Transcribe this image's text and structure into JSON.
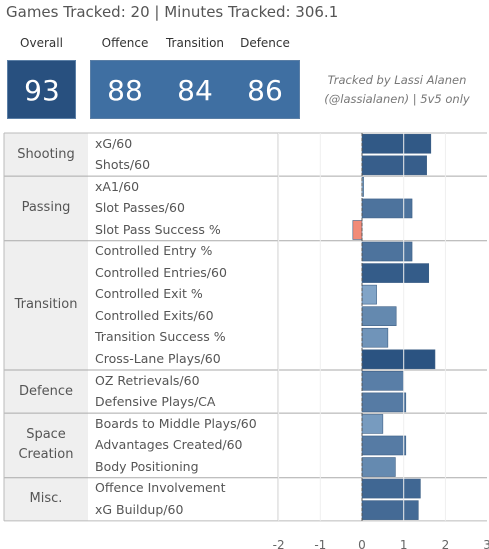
{
  "header": {
    "title": "Games Tracked: 20 | Minutes Tracked: 306.1"
  },
  "scores": {
    "overall": {
      "label": "Overall",
      "value": "93"
    },
    "offence": {
      "label": "Offence",
      "value": "88"
    },
    "transition": {
      "label": "Transition",
      "value": "84"
    },
    "defence": {
      "label": "Defence",
      "value": "86"
    }
  },
  "note": {
    "line1": "Tracked by Lassi Alanen",
    "line2": "(@lassialanen) | 5v5 only"
  },
  "colors": {
    "overall_box": "#28507f",
    "sub_box": "#3f6fa2",
    "negative_bar": "#f28b78"
  },
  "chart_data": {
    "type": "bar",
    "orientation": "horizontal",
    "xlim": [
      -2.5,
      3.2
    ],
    "xticks": [
      -2,
      -1,
      0,
      1,
      2,
      3
    ],
    "zero_line": "dashed",
    "groups": [
      {
        "name": "Shooting",
        "metrics": [
          {
            "label": "xG/60",
            "value": 1.65
          },
          {
            "label": "Shots/60",
            "value": 1.55
          }
        ]
      },
      {
        "name": "Passing",
        "metrics": [
          {
            "label": "xA1/60",
            "value": 0.04
          },
          {
            "label": "Slot Passes/60",
            "value": 1.2
          },
          {
            "label": "Slot Pass Success %",
            "value": -0.22
          }
        ]
      },
      {
        "name": "Transition",
        "metrics": [
          {
            "label": "Controlled Entry %",
            "value": 1.2
          },
          {
            "label": "Controlled Entries/60",
            "value": 1.6
          },
          {
            "label": "Controlled Exit %",
            "value": 0.35
          },
          {
            "label": "Controlled Exits/60",
            "value": 0.82
          },
          {
            "label": "Transition Success %",
            "value": 0.62
          },
          {
            "label": "Cross-Lane Plays/60",
            "value": 1.75
          }
        ]
      },
      {
        "name": "Defence",
        "metrics": [
          {
            "label": "OZ Retrievals/60",
            "value": 1.0
          },
          {
            "label": "Defensive Plays/CA",
            "value": 1.05
          }
        ]
      },
      {
        "name": "Space Creation",
        "metrics": [
          {
            "label": "Boards to Middle Plays/60",
            "value": 0.5
          },
          {
            "label": "Advantages Created/60",
            "value": 1.05
          },
          {
            "label": "Body Positioning",
            "value": 0.8
          }
        ]
      },
      {
        "name": "Misc.",
        "metrics": [
          {
            "label": "Offence Involvement",
            "value": 1.4
          },
          {
            "label": "xG Buildup/60",
            "value": 1.35
          }
        ]
      }
    ]
  }
}
